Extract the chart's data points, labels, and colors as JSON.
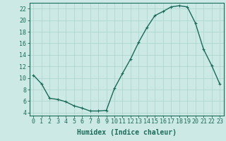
{
  "x": [
    0,
    1,
    2,
    3,
    4,
    5,
    6,
    7,
    8,
    9,
    10,
    11,
    12,
    13,
    14,
    15,
    16,
    17,
    18,
    19,
    20,
    21,
    22,
    23
  ],
  "y": [
    10.5,
    9.0,
    6.5,
    6.3,
    5.9,
    5.2,
    4.8,
    4.3,
    4.3,
    4.4,
    8.2,
    10.8,
    13.3,
    16.2,
    18.7,
    20.8,
    21.5,
    22.3,
    22.5,
    22.3,
    19.5,
    15.0,
    12.2,
    9.0
  ],
  "line_color": "#1a6b5a",
  "marker": "+",
  "marker_size": 3,
  "marker_linewidth": 0.8,
  "bg_color": "#cce9e5",
  "grid_color": "#aad4cf",
  "axis_color": "#1a6b5a",
  "xlabel": "Humidex (Indice chaleur)",
  "xlabel_fontsize": 7,
  "ylabel_ticks": [
    4,
    6,
    8,
    10,
    12,
    14,
    16,
    18,
    20,
    22
  ],
  "xlim": [
    -0.5,
    23.5
  ],
  "ylim": [
    3.5,
    23.0
  ],
  "xtick_labels": [
    "0",
    "1",
    "2",
    "3",
    "4",
    "5",
    "6",
    "7",
    "8",
    "9",
    "10",
    "11",
    "12",
    "13",
    "14",
    "15",
    "16",
    "17",
    "18",
    "19",
    "20",
    "21",
    "22",
    "23"
  ],
  "tick_fontsize": 6,
  "line_width": 1.0
}
